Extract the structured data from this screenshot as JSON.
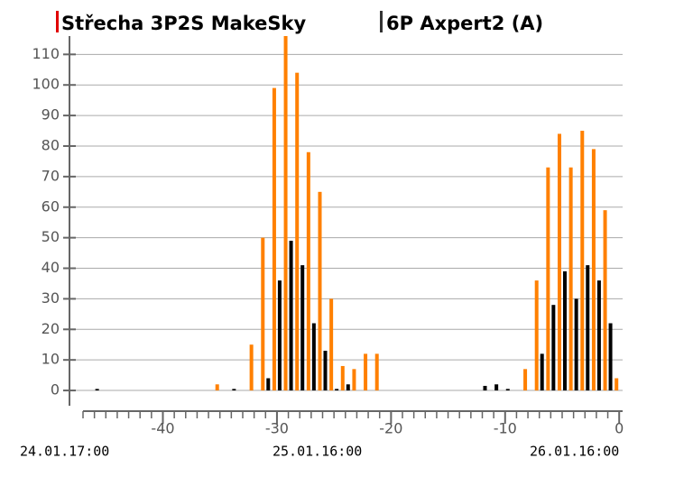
{
  "chart_data": {
    "type": "bar",
    "x": [
      -46,
      -35,
      -34,
      -32,
      -31,
      -30,
      -29,
      -28,
      -27,
      -26,
      -25,
      -24,
      -23,
      -22,
      -21,
      -12,
      -11,
      -10,
      -8,
      -7,
      -6,
      -5,
      -4,
      -3,
      -2,
      -1,
      0
    ],
    "series": [
      {
        "name": "Střecha 3P2S MakeSky",
        "color": "#ff8000",
        "values": [
          null,
          2,
          null,
          15,
          50,
          99,
          116,
          104,
          78,
          65,
          30,
          8,
          7,
          12,
          12,
          null,
          null,
          null,
          7,
          36,
          73,
          84,
          73,
          85,
          79,
          59,
          4
        ]
      },
      {
        "name": "6P Axpert2 (A)",
        "color": "#000000",
        "values": [
          0.5,
          null,
          0.5,
          null,
          4,
          36,
          49,
          41,
          22,
          13,
          0.5,
          2,
          null,
          null,
          null,
          1.5,
          2,
          0.5,
          null,
          12,
          28,
          39,
          30,
          41,
          36,
          22,
          null
        ]
      }
    ],
    "xlim": [
      -47,
      0.3
    ],
    "xticks": [
      -40,
      -30,
      -20,
      -10,
      0
    ],
    "ylim": [
      -5,
      116
    ],
    "yticks": [
      0,
      10,
      20,
      30,
      40,
      50,
      60,
      70,
      80,
      90,
      100,
      110
    ],
    "grid": true,
    "annotations": [
      "24.01.17:00",
      "25.01.16:00",
      "26.01.16:00"
    ]
  }
}
